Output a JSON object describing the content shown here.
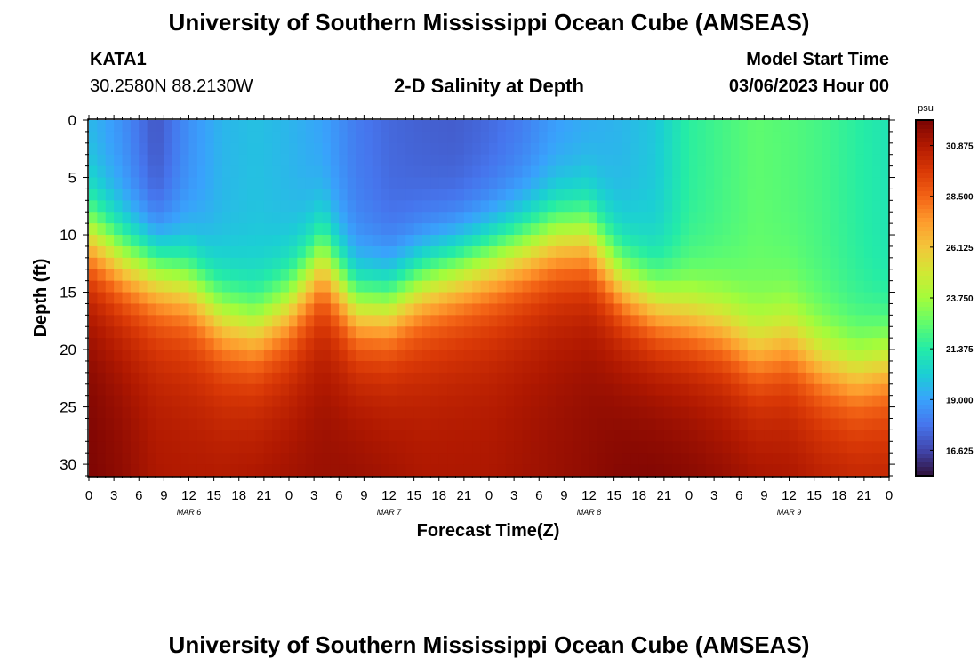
{
  "page_title": "University of Southern Mississippi Ocean Cube (AMSEAS)",
  "footer_title": "University of Southern Mississippi Ocean Cube (AMSEAS)",
  "station": {
    "id": "KATA1",
    "coords": "30.2580N  88.2130W"
  },
  "model": {
    "label": "Model Start Time",
    "start": "03/06/2023 Hour 00"
  },
  "chart_data": {
    "type": "heatmap",
    "title": "2-D Salinity at Depth",
    "xlabel": "Forecast Time(Z)",
    "ylabel": "Depth (ft)",
    "units": "psu",
    "x_range_hours": [
      0,
      96
    ],
    "y_range_ft": [
      0,
      31
    ],
    "x_tick_labels": [
      "0",
      "3",
      "6",
      "9",
      "12",
      "15",
      "18",
      "21",
      "0",
      "3",
      "6",
      "9",
      "12",
      "15",
      "18",
      "21",
      "0",
      "3",
      "6",
      "9",
      "12",
      "15",
      "18",
      "21",
      "0",
      "3",
      "6",
      "9",
      "12",
      "15",
      "18",
      "21",
      "0"
    ],
    "y_ticks": [
      0,
      5,
      10,
      15,
      20,
      25,
      30
    ],
    "date_labels": [
      {
        "label": "MAR 6",
        "hour": 12
      },
      {
        "label": "MAR 7",
        "hour": 36
      },
      {
        "label": "MAR 8",
        "hour": 60
      },
      {
        "label": "MAR 9",
        "hour": 84
      }
    ],
    "colorbar_ticks": [
      "30.875",
      "28.500",
      "26.125",
      "23.750",
      "21.375",
      "19.000",
      "16.625"
    ],
    "colorbar_range": [
      15.4375,
      32.0625
    ],
    "colormap": [
      "#30123b",
      "#4145ab",
      "#4675ed",
      "#39a2fc",
      "#1bcfd4",
      "#24eca6",
      "#61fc6c",
      "#a4fc3b",
      "#d1e834",
      "#f3c63a",
      "#fe9b2d",
      "#f36315",
      "#d93806",
      "#b11901",
      "#7a0403"
    ],
    "profiles": {
      "hours": [
        0,
        4,
        8,
        12,
        16,
        20,
        24,
        28,
        32,
        36,
        40,
        44,
        48,
        52,
        56,
        60,
        64,
        68,
        72,
        76,
        80,
        84,
        88,
        92,
        96
      ],
      "mixed_layer_depth_ft": [
        10,
        12,
        13,
        14,
        17,
        18,
        16,
        12,
        16,
        16,
        14,
        13,
        12,
        11,
        10,
        10,
        14,
        16,
        17,
        18,
        20,
        19,
        21,
        22,
        21
      ],
      "surface_salinity_psu": [
        19.5,
        18.5,
        17.0,
        18.5,
        19.5,
        19.8,
        19.5,
        19.0,
        18.0,
        17.5,
        17.3,
        17.2,
        17.5,
        18.0,
        18.8,
        19.2,
        19.5,
        20.0,
        21.5,
        22.0,
        22.5,
        22.3,
        22.0,
        21.5,
        21.0
      ],
      "bottom_salinity_psu": [
        32.0,
        31.6,
        31.0,
        30.9,
        31.0,
        31.2,
        31.3,
        31.4,
        31.5,
        31.3,
        31.0,
        31.0,
        31.0,
        31.2,
        31.4,
        31.6,
        31.9,
        32.0,
        31.9,
        31.7,
        31.5,
        31.3,
        31.1,
        31.0,
        30.9
      ]
    }
  }
}
